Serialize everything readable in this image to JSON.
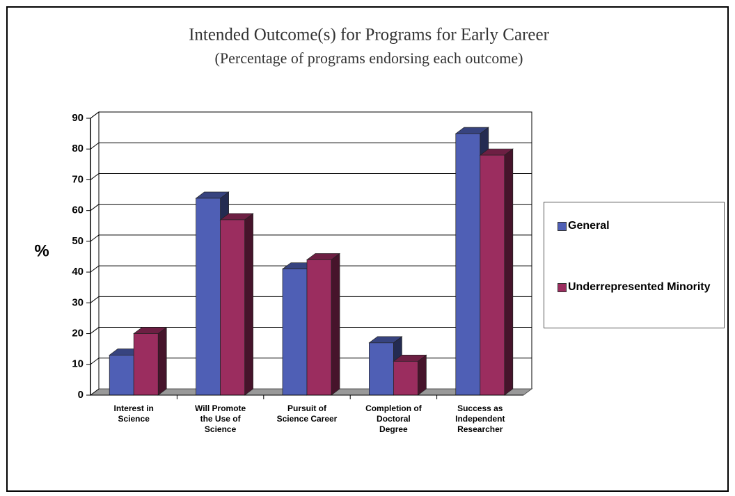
{
  "chart_data": {
    "type": "bar",
    "title": "Intended Outcome(s) for Programs for Early Career",
    "subtitle": "(Percentage of programs endorsing each outcome)",
    "y_label": "%",
    "categories": [
      "Interest in\nScience",
      "Will Promote\nthe Use of\nScience",
      "Pursuit of\nScience Career",
      "Completion of\nDoctoral\nDegree",
      "Success as\nIndependent\nResearcher"
    ],
    "series": [
      {
        "name": "General",
        "color": "#4f5fb5",
        "values": [
          13,
          64,
          41,
          17,
          85
        ]
      },
      {
        "name": "Underrepresented Minority",
        "color": "#9b2d5f",
        "values": [
          20,
          57,
          44,
          11,
          78
        ]
      }
    ],
    "ylim": [
      0,
      90
    ],
    "yticks": [
      0,
      10,
      20,
      30,
      40,
      50,
      60,
      70,
      80,
      90
    ],
    "grid": true,
    "legend": "right"
  }
}
